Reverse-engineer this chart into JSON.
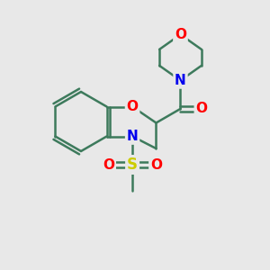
{
  "background_color": "#e8e8e8",
  "atom_colors": {
    "C": "#3d7a5c",
    "N": "#0000ee",
    "O": "#ff0000",
    "S": "#cccc00"
  },
  "bond_color": "#3d7a5c",
  "figure_size": [
    3.0,
    3.0
  ],
  "dpi": 100
}
